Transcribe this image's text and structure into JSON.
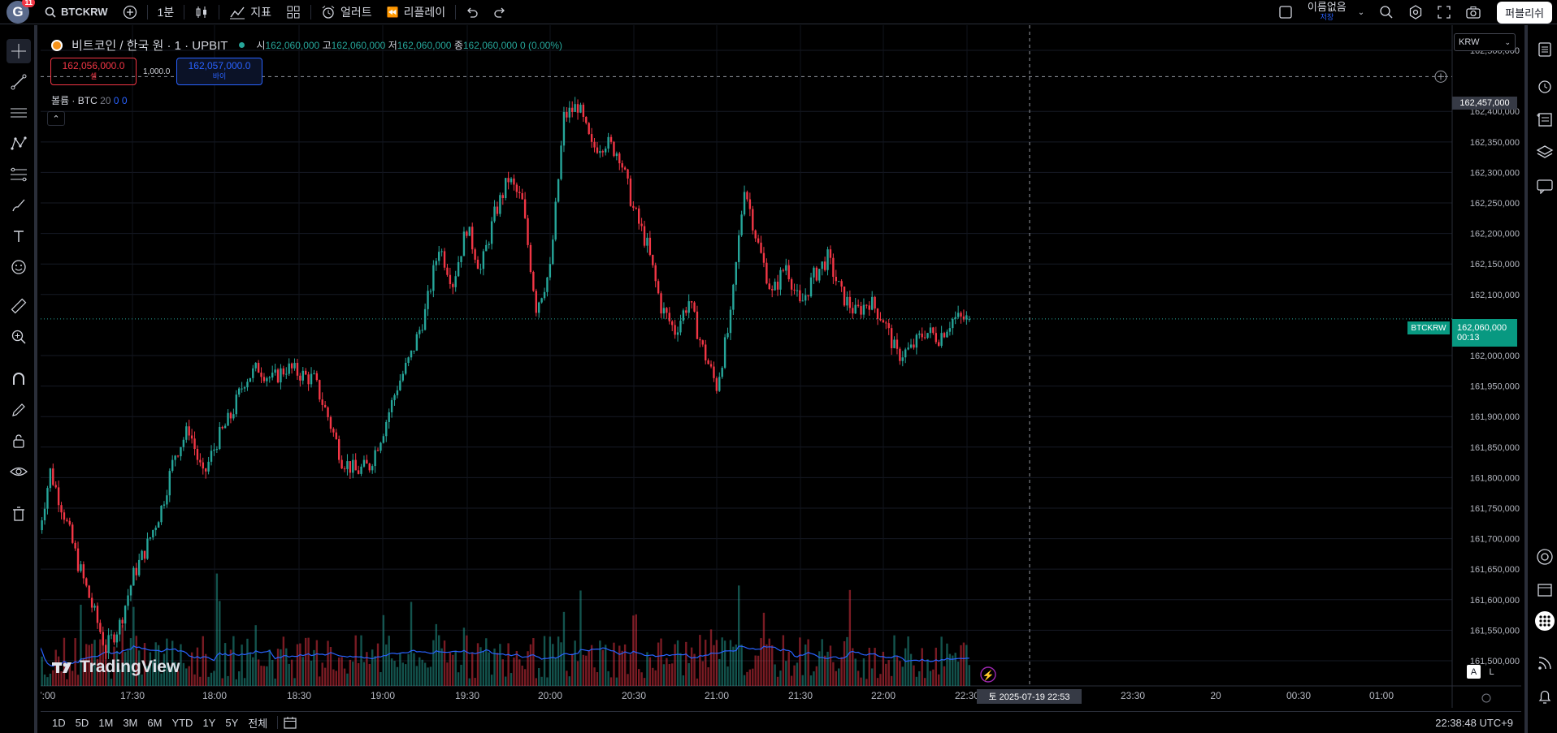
{
  "topbar": {
    "avatar_letter": "G",
    "notification_count": "11",
    "symbol": "BTCKRW",
    "interval": "1분",
    "indicators_label": "지표",
    "alert_label": "얼러트",
    "replay_label": "리플레이",
    "layout_name": "이름없음",
    "layout_status": "저장",
    "publish_label": "퍼블리쉬"
  },
  "legend": {
    "title": "비트코인 / 한국 원 · 1 · UPBIT",
    "open_label": "시",
    "open": "162,060,000",
    "high_label": "고",
    "high": "162,060,000",
    "low_label": "저",
    "low": "162,060,000",
    "close_label": "종",
    "close": "162,060,000",
    "change": "0 (0.00%)"
  },
  "trade": {
    "sell_price": "162,056,000.0",
    "sell_label": "셀",
    "spread": "1,000.0",
    "buy_price": "162,057,000.0",
    "buy_label": "바이"
  },
  "volume_legend": {
    "name": "볼륨 · BTC",
    "period": "20",
    "v1": "0",
    "v2": "0"
  },
  "currency": "KRW",
  "crosshair_price": "162,457,000",
  "current": {
    "symbol": "BTCKRW",
    "price": "162,060,000",
    "countdown": "00:13"
  },
  "crosshair_date": "토 2025-07-19   22:53",
  "price_axis": [
    "162,500,000",
    "162,400,000",
    "162,350,000",
    "162,300,000",
    "162,250,000",
    "162,200,000",
    "162,150,000",
    "162,100,000",
    "162,000,000",
    "161,950,000",
    "161,900,000",
    "161,850,000",
    "161,800,000",
    "161,750,000",
    "161,700,000",
    "161,650,000",
    "161,600,000",
    "161,550,000",
    "161,500,000"
  ],
  "time_axis": [
    "7:00",
    "17:30",
    "18:00",
    "18:30",
    "19:00",
    "19:30",
    "20:00",
    "20:30",
    "21:00",
    "21:30",
    "22:00",
    "22:30",
    "23:30",
    "20",
    "00:30",
    "01:00"
  ],
  "brand": "TradingView",
  "scale_buttons": {
    "auto": "A",
    "log": "L"
  },
  "ranges": [
    "1D",
    "5D",
    "1M",
    "3M",
    "6M",
    "YTD",
    "1Y",
    "5Y",
    "전체"
  ],
  "clock": "22:38:48 UTC+9",
  "colors": {
    "up": "#26a69a",
    "down": "#f23645",
    "volume_ma": "#2962ff",
    "accent": "#2962ff",
    "current_price": "#089981"
  },
  "chart_data": {
    "type": "candlestick",
    "x": [
      "17:00",
      "17:05",
      "17:10",
      "17:15",
      "17:20",
      "17:25",
      "17:30",
      "17:35",
      "17:40",
      "17:45",
      "17:50",
      "17:55",
      "18:00",
      "18:05",
      "18:10",
      "18:15",
      "18:20",
      "18:25",
      "18:30",
      "18:35",
      "18:40",
      "18:45",
      "18:50",
      "18:55",
      "19:00",
      "19:05",
      "19:10",
      "19:15",
      "19:20",
      "19:25",
      "19:30",
      "19:35",
      "19:40",
      "19:45",
      "19:50",
      "19:55",
      "20:00",
      "20:05",
      "20:10",
      "20:15",
      "20:20",
      "20:25",
      "20:30",
      "20:35",
      "20:40",
      "20:45",
      "20:50",
      "20:55",
      "21:00",
      "21:05",
      "21:10",
      "21:15",
      "21:20",
      "21:25",
      "21:30",
      "21:35",
      "21:40",
      "21:45",
      "21:50",
      "21:55",
      "22:00",
      "22:05",
      "22:10",
      "22:15",
      "22:20",
      "22:25",
      "22:30",
      "22:35"
    ],
    "close": [
      161690000,
      161810000,
      161740000,
      161660000,
      161590000,
      161520000,
      161560000,
      161640000,
      161690000,
      161750000,
      161840000,
      161880000,
      161800000,
      161860000,
      161900000,
      161960000,
      161980000,
      161960000,
      161980000,
      161970000,
      161960000,
      161900000,
      161830000,
      161810000,
      161820000,
      161880000,
      161950000,
      162000000,
      162070000,
      162180000,
      162120000,
      162210000,
      162140000,
      162230000,
      162290000,
      162250000,
      162080000,
      162140000,
      162390000,
      162410000,
      162340000,
      162350000,
      162330000,
      162240000,
      162180000,
      162080000,
      162040000,
      162090000,
      162010000,
      161950000,
      162060000,
      162280000,
      162180000,
      162100000,
      162150000,
      162080000,
      162130000,
      162160000,
      162100000,
      162070000,
      162090000,
      162060000,
      162000000,
      162010000,
      162040000,
      162030000,
      162060000,
      162060000
    ],
    "volume_note": "bars at bottom with 20-period MA (blue line)",
    "ylim": [
      161480000,
      162520000
    ],
    "ylabel": "KRW"
  }
}
